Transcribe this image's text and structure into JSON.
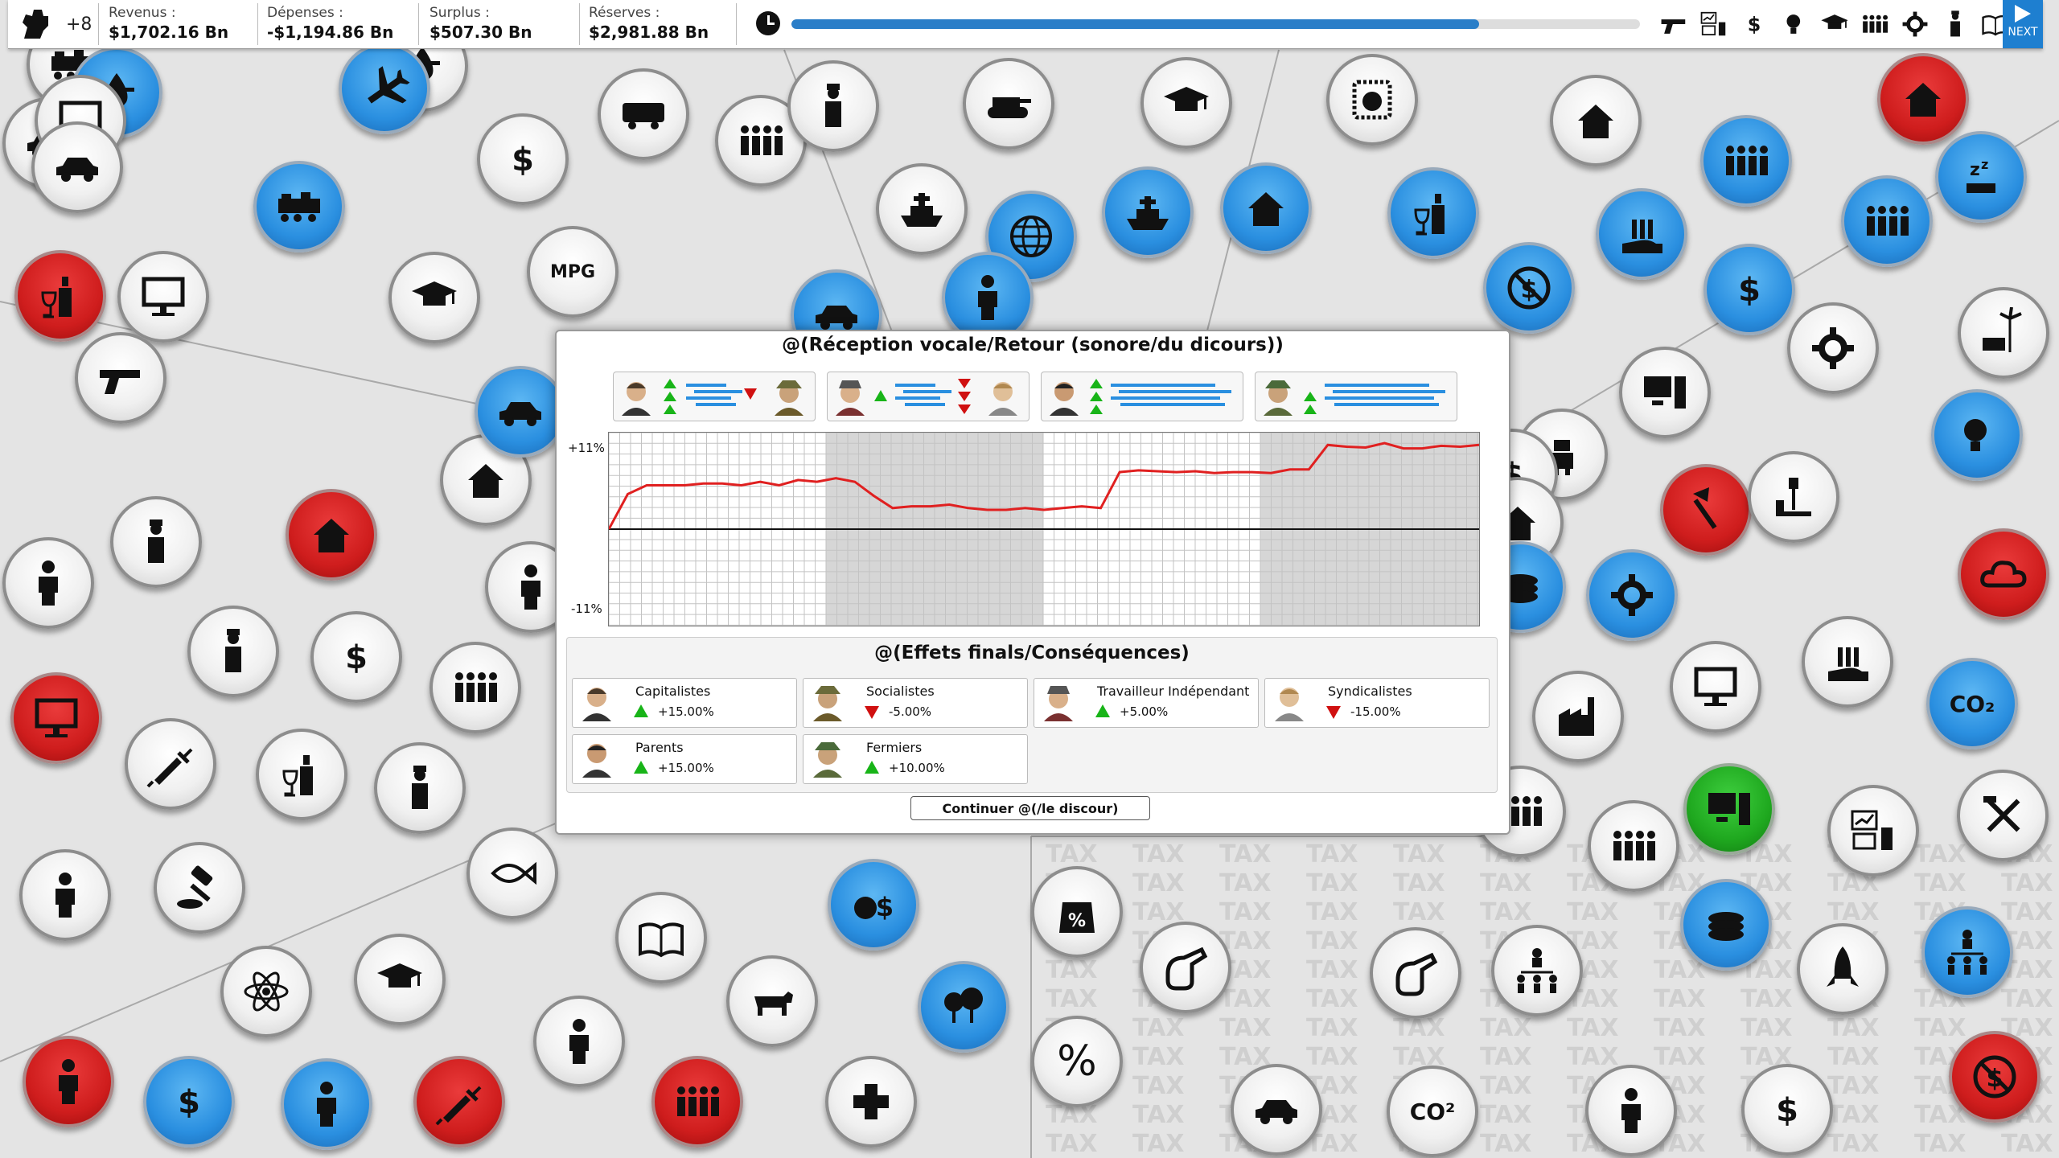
{
  "topbar": {
    "political_capital": "+8",
    "stats": [
      {
        "label": "Revenus :",
        "value": "$1,702.16 Bn"
      },
      {
        "label": "Dépenses :",
        "value": "-$1,194.86 Bn"
      },
      {
        "label": "Surplus :",
        "value": "$507.30 Bn"
      },
      {
        "label": "Réserves :",
        "value": "$2,981.88 Bn"
      }
    ],
    "turn_progress": 0.81,
    "menu_icons": [
      "gun-icon",
      "bar-chart-icon",
      "dollar-icon",
      "lightbulb-icon",
      "trophy-icon",
      "group-icon",
      "gears-icon",
      "medal-icon",
      "newspaper-icon"
    ],
    "next_label": "NEXT"
  },
  "background": {
    "tax_word": "TAX",
    "labels": {
      "mpg": "MPG",
      "percent": "%",
      "co2_right": "CO₂",
      "co2_bottom": "CO²"
    }
  },
  "dialog": {
    "title": "@(Réception vocale/Retour (sonore/du dicours))",
    "graph": {
      "y_top_label": "+11%",
      "y_bottom_label": "-11%",
      "ylim": [
        -11,
        11
      ],
      "values": [
        0,
        4,
        5,
        5,
        5,
        5.2,
        5.2,
        5,
        5.4,
        5,
        5.6,
        5.4,
        5.8,
        5.4,
        3.8,
        2.4,
        2.6,
        2.6,
        2.8,
        2.4,
        2.2,
        2.2,
        2.4,
        2.2,
        2.4,
        2.6,
        2.4,
        6.5,
        6.7,
        6.6,
        6.5,
        6.6,
        6.4,
        6.5,
        6.5,
        6.4,
        6.8,
        6.8,
        9.6,
        9.4,
        9.3,
        9.8,
        9.2,
        9.2,
        9.5,
        9.4,
        9.6
      ]
    },
    "effects_title": "@(Effets finals/Conséquences)",
    "effects": [
      {
        "name": "Capitalistes",
        "value": "+15.00%",
        "dir": "up"
      },
      {
        "name": "Socialistes",
        "value": "-5.00%",
        "dir": "down"
      },
      {
        "name": "Travailleur Indépendant",
        "value": "+5.00%",
        "dir": "up"
      },
      {
        "name": "Syndicalistes",
        "value": "-15.00%",
        "dir": "down"
      },
      {
        "name": "Parents",
        "value": "+15.00%",
        "dir": "up"
      },
      {
        "name": "Fermiers",
        "value": "+10.00%",
        "dir": "up"
      }
    ],
    "continue_label": "Continuer @(/le discour)"
  },
  "colors": {
    "accent": "#1e7fd0",
    "policy_blue": "#2a8fe0",
    "situation_red": "#cf1d1d",
    "good_green": "#1fa81f",
    "graph_line": "#e02020"
  }
}
